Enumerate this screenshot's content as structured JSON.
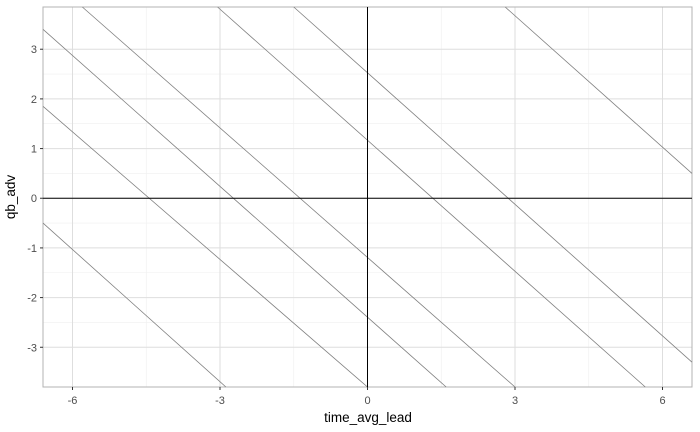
{
  "chart_data": {
    "type": "line",
    "title": "",
    "xlabel": "time_avg_lead",
    "ylabel": "qb_adv",
    "xlim": [
      -6.6,
      6.6
    ],
    "ylim": [
      -3.8,
      3.85
    ],
    "x_ticks": [
      -6,
      -3,
      0,
      3,
      6
    ],
    "x_tick_labels": [
      "-6",
      "-3",
      "0",
      "3",
      "6"
    ],
    "y_ticks": [
      -3,
      -2,
      -1,
      0,
      1,
      2,
      3
    ],
    "y_tick_labels": [
      "-3",
      "-2",
      "-1",
      "0",
      "1",
      "2",
      "3"
    ],
    "grid": true,
    "reference_lines": {
      "x": 0,
      "y": 0
    },
    "series": [
      {
        "x": [
          -6.6,
          -2.88
        ],
        "y": [
          -0.5,
          -3.8
        ]
      },
      {
        "x": [
          -6.6,
          0
        ],
        "y": [
          1.85,
          -3.8
        ]
      },
      {
        "x": [
          -6.6,
          1.6
        ],
        "y": [
          3.4,
          -3.8
        ]
      },
      {
        "x": [
          -5.8,
          3.0
        ],
        "y": [
          3.85,
          -3.8
        ]
      },
      {
        "x": [
          -3.05,
          5.65
        ],
        "y": [
          3.85,
          -3.8
        ]
      },
      {
        "x": [
          -1.5,
          6.6
        ],
        "y": [
          3.85,
          -3.3
        ]
      },
      {
        "x": [
          2.8,
          6.6
        ],
        "y": [
          3.85,
          0.5
        ]
      }
    ],
    "colors": {
      "series": "#808080",
      "grid": "#dedede",
      "reference": "#000000",
      "panel_border": "#b3b3b3"
    }
  }
}
